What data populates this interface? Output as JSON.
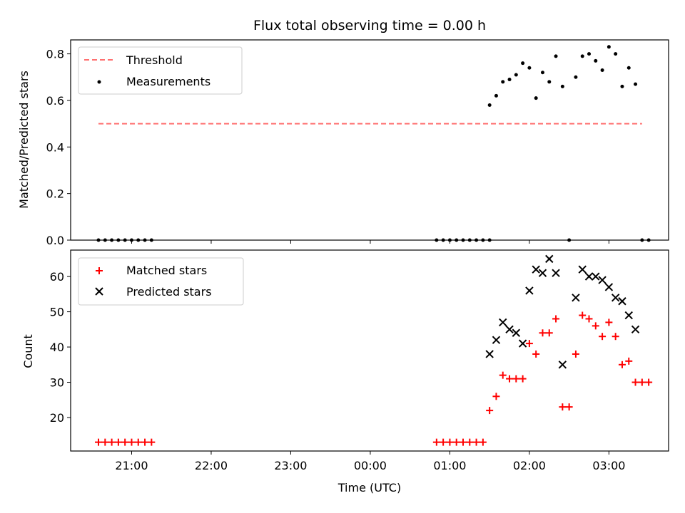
{
  "chart_data": [
    {
      "type": "scatter",
      "title": "Flux total observing time = 0.00 h",
      "xlabel": "",
      "ylabel": "Matched/Predicted stars",
      "ylim": [
        0,
        0.86
      ],
      "xlim": [
        "20:14",
        "03:45"
      ],
      "x_ticks": [
        "21:00",
        "22:00",
        "23:00",
        "00:00",
        "01:00",
        "02:00",
        "03:00"
      ],
      "y_ticks": [
        "0.0",
        "0.2",
        "0.4",
        "0.6",
        "0.8"
      ],
      "legend_position": "top-left",
      "series": [
        {
          "name": "Threshold",
          "kind": "dashed-line",
          "color": "#ff7070",
          "x": [
            "20:35",
            "03:25"
          ],
          "y": [
            0.5,
            0.5
          ]
        },
        {
          "name": "Measurements",
          "kind": "dot",
          "color": "#000000",
          "x": [
            "20:35",
            "20:40",
            "20:45",
            "20:50",
            "20:55",
            "21:00",
            "21:05",
            "21:10",
            "21:15",
            "00:50",
            "00:55",
            "01:00",
            "01:05",
            "01:10",
            "01:15",
            "01:20",
            "01:25",
            "01:30",
            "01:30",
            "01:35",
            "01:40",
            "01:45",
            "01:50",
            "01:55",
            "02:00",
            "02:05",
            "02:10",
            "02:15",
            "02:20",
            "02:25",
            "02:30",
            "02:35",
            "02:40",
            "02:45",
            "02:50",
            "02:55",
            "03:00",
            "03:05",
            "03:10",
            "03:15",
            "03:20",
            "03:25",
            "03:30"
          ],
          "y": [
            0,
            0,
            0,
            0,
            0,
            0,
            0,
            0,
            0,
            0,
            0,
            0,
            0,
            0,
            0,
            0,
            0,
            0,
            0.58,
            0.62,
            0.68,
            0.69,
            0.71,
            0.76,
            0.74,
            0.61,
            0.72,
            0.68,
            0.79,
            0.66,
            0,
            0.7,
            0.79,
            0.8,
            0.77,
            0.73,
            0.83,
            0.8,
            0.66,
            0.74,
            0.67,
            0,
            0
          ]
        }
      ]
    },
    {
      "type": "scatter",
      "title": "",
      "xlabel": "Time (UTC)",
      "ylabel": "Count",
      "ylim": [
        10.5,
        67.5
      ],
      "xlim": [
        "20:14",
        "03:45"
      ],
      "x_ticks": [
        "21:00",
        "22:00",
        "23:00",
        "00:00",
        "01:00",
        "02:00",
        "03:00"
      ],
      "y_ticks": [
        "20",
        "30",
        "40",
        "50",
        "60"
      ],
      "legend_position": "top-left",
      "series": [
        {
          "name": "Matched stars",
          "kind": "plus",
          "color": "#ff0000",
          "x": [
            "20:35",
            "20:40",
            "20:45",
            "20:50",
            "20:55",
            "21:00",
            "21:05",
            "21:10",
            "21:15",
            "00:50",
            "00:55",
            "01:00",
            "01:05",
            "01:10",
            "01:15",
            "01:20",
            "01:25",
            "01:30",
            "01:35",
            "01:40",
            "01:45",
            "01:50",
            "01:55",
            "02:00",
            "02:05",
            "02:10",
            "02:15",
            "02:20",
            "02:25",
            "02:30",
            "02:35",
            "02:40",
            "02:45",
            "02:50",
            "02:55",
            "03:00",
            "03:05",
            "03:10",
            "03:15",
            "03:20",
            "03:25",
            "03:30"
          ],
          "y": [
            13,
            13,
            13,
            13,
            13,
            13,
            13,
            13,
            13,
            13,
            13,
            13,
            13,
            13,
            13,
            13,
            13,
            22,
            26,
            32,
            31,
            31,
            31,
            41,
            38,
            44,
            44,
            48,
            23,
            23,
            38,
            49,
            48,
            46,
            43,
            47,
            43,
            35,
            36,
            30,
            30,
            30
          ]
        },
        {
          "name": "Predicted stars",
          "kind": "x",
          "color": "#000000",
          "x": [
            "01:30",
            "01:35",
            "01:40",
            "01:45",
            "01:50",
            "01:55",
            "02:00",
            "02:05",
            "02:10",
            "02:15",
            "02:20",
            "02:25",
            "02:35",
            "02:40",
            "02:45",
            "02:50",
            "02:55",
            "03:00",
            "03:05",
            "03:10",
            "03:15",
            "03:20"
          ],
          "y": [
            38,
            42,
            47,
            45,
            44,
            41,
            56,
            62,
            61,
            65,
            61,
            35,
            54,
            62,
            60,
            60,
            59,
            57,
            54,
            53,
            49,
            45
          ]
        }
      ]
    }
  ]
}
